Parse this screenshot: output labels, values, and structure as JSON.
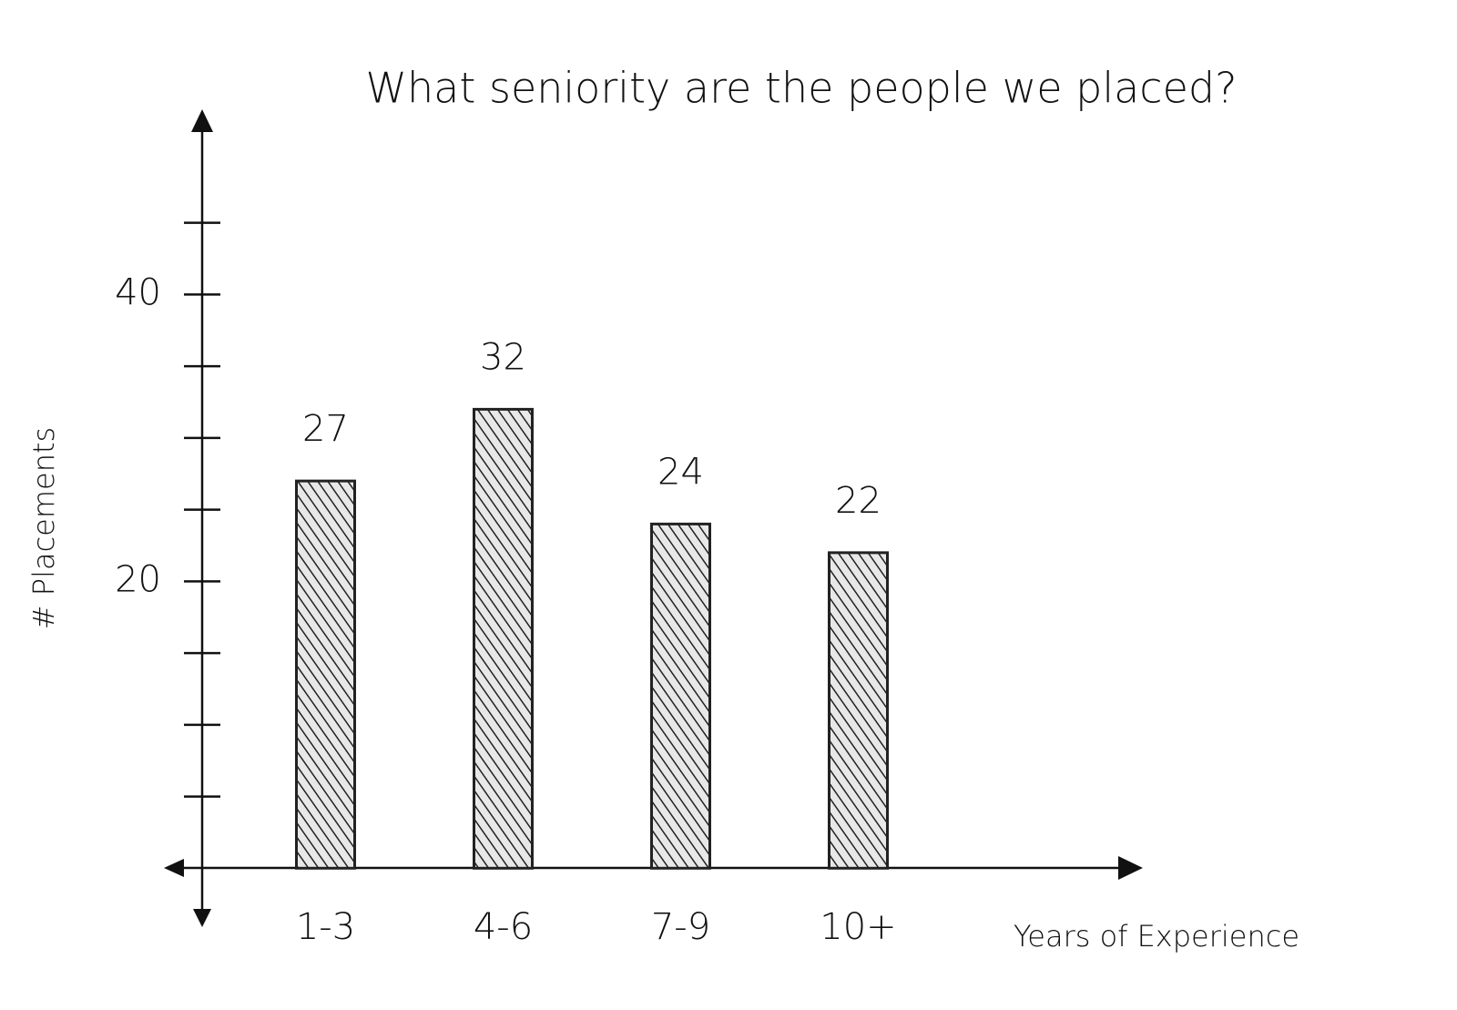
{
  "chart_data": {
    "type": "bar",
    "title": "What seniority are the people we placed?",
    "x_label": "Years of Experience",
    "y_label": "# Placements",
    "categories": [
      "1-3",
      "4-6",
      "7-9",
      "10+"
    ],
    "values": [
      27,
      32,
      24,
      22
    ],
    "color": "#222222",
    "ylim": [
      -3.6,
      52.6
    ],
    "yticks": [
      20,
      40
    ],
    "minor_yticks": [
      5,
      10,
      15,
      25,
      30,
      35,
      45
    ],
    "grid": false
  }
}
